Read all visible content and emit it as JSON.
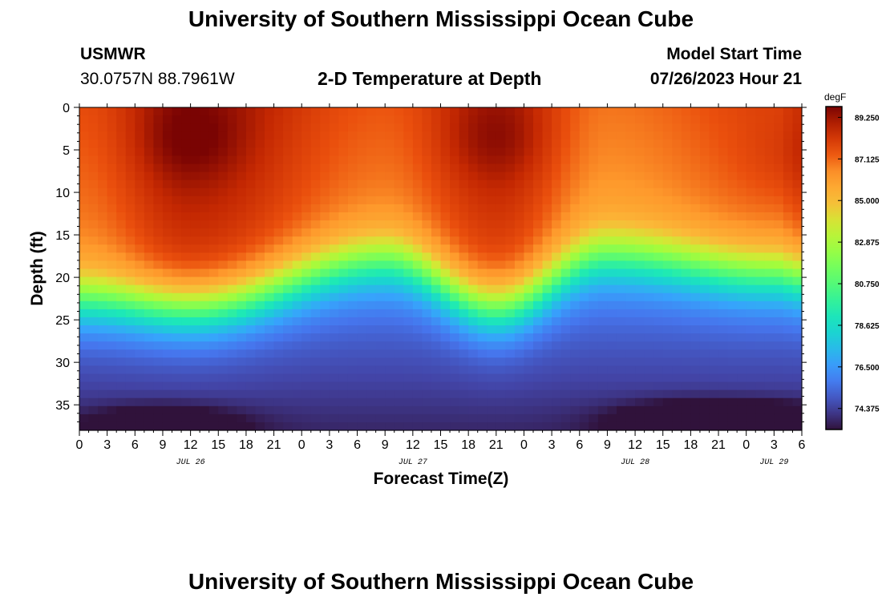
{
  "page": {
    "title_top": "University of Southern Mississippi Ocean Cube",
    "title_bottom": "University of Southern Mississippi Ocean Cube",
    "station_name": "USMWR",
    "station_coords": "30.0757N  88.7961W",
    "plot_title": "2-D Temperature at Depth",
    "start_label": "Model Start Time",
    "start_time": "07/26/2023 Hour 21"
  },
  "chart_data": {
    "type": "heatmap",
    "title": "2-D Temperature at Depth",
    "xlabel": "Forecast Time(Z)",
    "ylabel": "Depth (ft)",
    "x_hours_from_jul26_00z": [
      0,
      78
    ],
    "ylim": [
      0,
      38
    ],
    "x_tick_labels": [
      "0",
      "3",
      "6",
      "9",
      "12",
      "15",
      "18",
      "21",
      "0",
      "3",
      "6",
      "9",
      "12",
      "15",
      "18",
      "21",
      "0",
      "3",
      "6",
      "9",
      "12",
      "15",
      "18",
      "21",
      "0",
      "3",
      "6"
    ],
    "y_ticks": [
      0,
      5,
      10,
      15,
      20,
      25,
      30,
      35
    ],
    "date_labels": [
      {
        "label": "JUL 26",
        "hour": 12
      },
      {
        "label": "JUL 27",
        "hour": 36
      },
      {
        "label": "JUL 28",
        "hour": 60
      },
      {
        "label": "JUL 29",
        "hour": 75
      }
    ],
    "colorbar": {
      "unit": "degF",
      "min": 73.3,
      "max": 89.8,
      "tick_labels": [
        "89.250",
        "87.125",
        "85.000",
        "82.875",
        "80.750",
        "78.625",
        "76.500",
        "74.375"
      ],
      "tick_values": [
        89.25,
        87.125,
        85.0,
        82.875,
        80.75,
        78.625,
        76.5,
        74.375
      ]
    },
    "approx_profile": [
      {
        "hour": 0,
        "thermocline_ft": 22.5,
        "surface_degF": 87.6
      },
      {
        "hour": 12,
        "thermocline_ft": 23.5,
        "surface_degF": 89.3
      },
      {
        "hour": 33,
        "thermocline_ft": 18.0,
        "surface_degF": 87.4
      },
      {
        "hour": 45,
        "thermocline_ft": 23.5,
        "surface_degF": 88.9
      },
      {
        "hour": 57,
        "thermocline_ft": 17.5,
        "surface_degF": 86.9
      },
      {
        "hour": 75,
        "thermocline_ft": 19.5,
        "surface_degF": 87.8
      },
      {
        "hour": 78,
        "thermocline_ft": 20.0,
        "surface_degF": 88.3
      }
    ]
  }
}
